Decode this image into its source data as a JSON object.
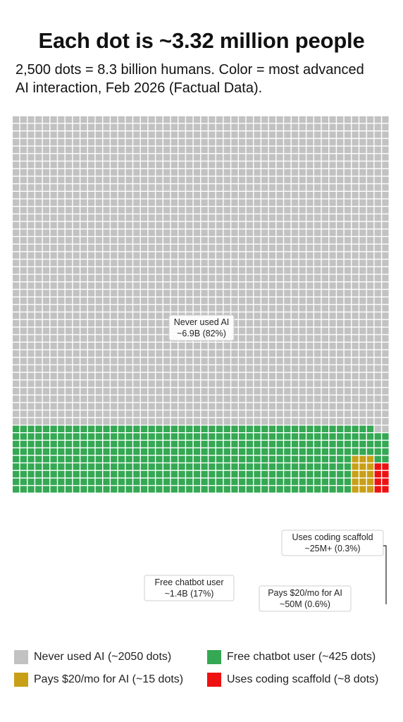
{
  "title": "Each dot is ~3.32 million people",
  "subtitle_line1": "2,500 dots = 8.3 billion humans. Color = most advanced",
  "subtitle_line2": "AI interaction, Feb 2026 (Factual Data).",
  "chart_data": {
    "type": "waffle",
    "total_dots": 2500,
    "categories": [
      {
        "name": "Never used AI",
        "dots": 2050,
        "color": "#c2c2c2",
        "legend": "Never used AI (~2050 dots)",
        "annotation": [
          "Never used AI",
          "~6.9B (82%)"
        ]
      },
      {
        "name": "Free chatbot user",
        "dots": 425,
        "color": "#34a853",
        "legend": "Free chatbot user (~425 dots)",
        "annotation": [
          "Free chatbot user",
          "~1.4B (17%)"
        ]
      },
      {
        "name": "Pays $20/mo for AI",
        "dots": 15,
        "color": "#c8a017",
        "legend": "Pays $20/mo for AI (~15 dots)",
        "annotation": [
          "Pays $20/mo for AI",
          "~50M (0.6%)"
        ]
      },
      {
        "name": "Uses coding scaffold",
        "dots": 8,
        "color": "#ee1111",
        "legend": "Uses coding scaffold (~8 dots)",
        "annotation": [
          "Uses coding scaffold",
          "~25M+ (0.3%)"
        ]
      }
    ]
  }
}
